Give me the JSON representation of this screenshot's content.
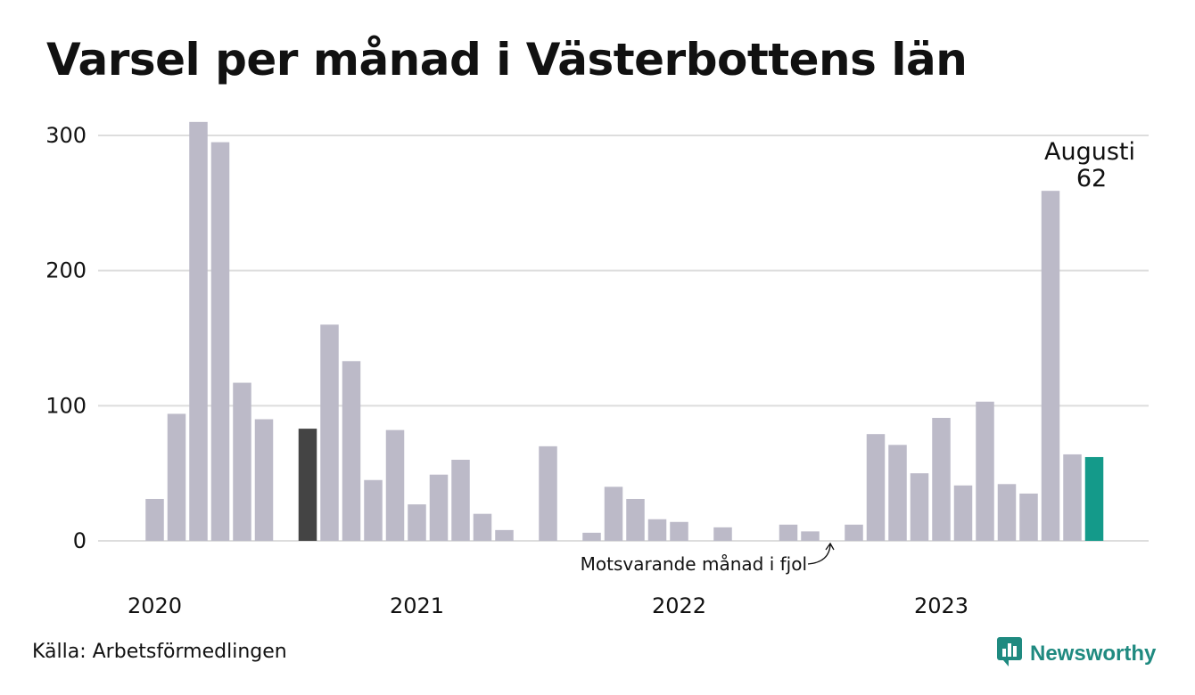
{
  "title": "Varsel per månad i Västerbottens län",
  "source": "Källa: Arbetsförmedlingen",
  "brand": {
    "name": "Newsworthy",
    "icon": "newsworthy-logo-icon"
  },
  "colors": {
    "bar": "#bcbac8",
    "previous_year": "#444444",
    "current": "#149a8a",
    "grid": "#dddddd",
    "brand": "#1f8a80"
  },
  "chart_data": {
    "type": "bar",
    "x_tick_labels": [
      "2020",
      "2021",
      "2022",
      "2023"
    ],
    "ylim": [
      0,
      310
    ],
    "yticks": [
      0,
      100,
      200,
      300
    ],
    "grid": true,
    "values": [
      31,
      94,
      310,
      295,
      117,
      90,
      null,
      83,
      160,
      133,
      45,
      82,
      27,
      49,
      60,
      20,
      8,
      null,
      70,
      null,
      6,
      40,
      31,
      16,
      14,
      null,
      10,
      null,
      null,
      12,
      7,
      null,
      12,
      79,
      71,
      50,
      91,
      41,
      103,
      42,
      35,
      259,
      64,
      62
    ],
    "highlight_previous_index": 7,
    "highlight_current_index": 43,
    "annotations": {
      "current_label": "Augusti",
      "current_value": "62",
      "previous_label": "Motsvarande månad i fjol"
    }
  }
}
